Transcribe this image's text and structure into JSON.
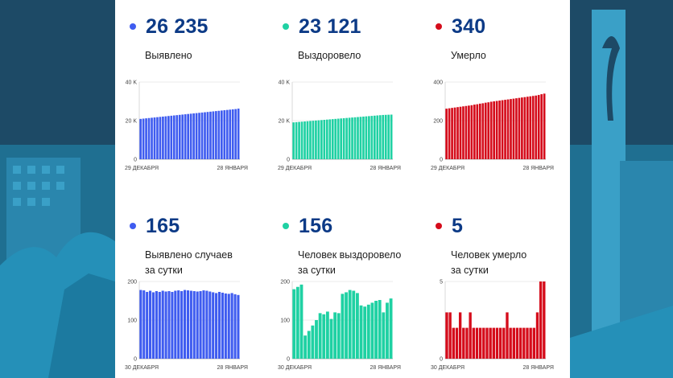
{
  "colors": {
    "blue": "#3f5cf0",
    "green": "#1fd1a3",
    "red": "#d50c1b",
    "valueText": "#0c3a86"
  },
  "cards": [
    {
      "value": "26 235",
      "label": [
        "Выявлено"
      ],
      "color": "#3f5cf0"
    },
    {
      "value": "23 121",
      "label": [
        "Выздоровело"
      ],
      "color": "#1fd1a3"
    },
    {
      "value": "340",
      "label": [
        "Умерло"
      ],
      "color": "#d50c1b"
    },
    {
      "value": "165",
      "label": [
        "Выявлено случаев",
        "за сутки"
      ],
      "color": "#3f5cf0"
    },
    {
      "value": "156",
      "label": [
        "Человек выздоровело",
        "за сутки"
      ],
      "color": "#1fd1a3"
    },
    {
      "value": "5",
      "label": [
        "Человек умерло",
        "за сутки"
      ],
      "color": "#d50c1b"
    }
  ],
  "chart_data": [
    {
      "type": "bar",
      "yticks": [
        "0",
        "20 K",
        "40 K"
      ],
      "ylim": [
        0,
        40000
      ],
      "xlabels": [
        "29 ДЕКАБРЯ",
        "28 ЯНВАРЯ"
      ],
      "color": "#3f5cf0",
      "values": [
        20900,
        21050,
        21200,
        21350,
        21500,
        21650,
        21800,
        21950,
        22100,
        22250,
        22400,
        22550,
        22700,
        22850,
        23000,
        23150,
        23300,
        23450,
        23600,
        23750,
        23900,
        24050,
        24200,
        24350,
        24500,
        24650,
        24800,
        24950,
        25100,
        25250,
        25400,
        25550,
        25700,
        25850,
        26000,
        26235
      ]
    },
    {
      "type": "bar",
      "yticks": [
        "0",
        "20 K",
        "40 K"
      ],
      "ylim": [
        0,
        40000
      ],
      "xlabels": [
        "29 ДЕКАБРЯ",
        "28 ЯНВАРЯ"
      ],
      "color": "#1fd1a3",
      "values": [
        19100,
        19220,
        19340,
        19460,
        19580,
        19700,
        19820,
        19940,
        20060,
        20180,
        20300,
        20420,
        20540,
        20660,
        20780,
        20900,
        21020,
        21140,
        21260,
        21380,
        21500,
        21620,
        21740,
        21860,
        21980,
        22100,
        22220,
        22340,
        22460,
        22580,
        22700,
        22820,
        22940,
        23000,
        23060,
        23121
      ]
    },
    {
      "type": "bar",
      "yticks": [
        "0",
        "200",
        "400"
      ],
      "ylim": [
        0,
        400
      ],
      "xlabels": [
        "29 ДЕКАБРЯ",
        "28 ЯНВАРЯ"
      ],
      "color": "#d50c1b",
      "values": [
        262,
        264,
        266,
        268,
        270,
        272,
        274,
        276,
        278,
        280,
        283,
        285,
        288,
        290,
        293,
        295,
        298,
        300,
        302,
        304,
        306,
        308,
        310,
        312,
        314,
        316,
        318,
        320,
        322,
        324,
        326,
        328,
        330,
        333,
        337,
        340
      ]
    },
    {
      "type": "bar",
      "yticks": [
        "0",
        "100",
        "200"
      ],
      "ylim": [
        0,
        200
      ],
      "xlabels": [
        "30 ДЕКАБРЯ",
        "28 ЯНВАРЯ"
      ],
      "color": "#3f5cf0",
      "values": [
        178,
        177,
        173,
        176,
        172,
        175,
        173,
        176,
        174,
        175,
        173,
        176,
        177,
        175,
        178,
        177,
        176,
        175,
        174,
        175,
        177,
        176,
        174,
        172,
        170,
        173,
        171,
        169,
        168,
        170,
        167,
        165
      ]
    },
    {
      "type": "bar",
      "yticks": [
        "0",
        "100",
        "200"
      ],
      "ylim": [
        0,
        200
      ],
      "xlabels": [
        "30 ДЕКАБРЯ",
        "28 ЯНВАРЯ"
      ],
      "color": "#1fd1a3",
      "values": [
        180,
        186,
        192,
        60,
        72,
        86,
        100,
        118,
        115,
        122,
        103,
        120,
        118,
        168,
        172,
        178,
        176,
        170,
        138,
        135,
        140,
        145,
        150,
        152,
        120,
        145,
        156
      ]
    },
    {
      "type": "bar",
      "yticks": [
        "0",
        "5"
      ],
      "ylim": [
        0,
        5
      ],
      "xlabels": [
        "30 ДЕКАБРЯ",
        "28 ЯНВАРЯ"
      ],
      "color": "#d50c1b",
      "values": [
        3,
        3,
        2,
        2,
        3,
        2,
        2,
        3,
        2,
        2,
        2,
        2,
        2,
        2,
        2,
        2,
        2,
        2,
        3,
        2,
        2,
        2,
        2,
        2,
        2,
        2,
        2,
        3,
        5,
        5
      ]
    }
  ]
}
